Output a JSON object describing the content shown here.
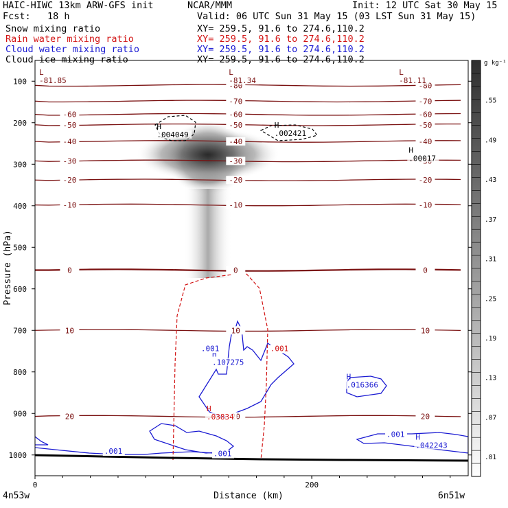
{
  "header": {
    "model": "HAIC-HIWC 13km ARW-GFS init",
    "org": "NCAR/MMM",
    "init": "Init: 12 UTC Sat 30 May 15",
    "fcst": "Fcst:   18 h",
    "valid": "Valid: 06 UTC Sun 31 May 15 (03 LST Sun 31 May 15)"
  },
  "fields": [
    {
      "name": "Snow mixing ratio",
      "xy": "XY= 259.5, 91.6 to 274.6,110.2",
      "color": "#000000"
    },
    {
      "name": "Rain water mixing ratio",
      "xy": "XY= 259.5, 91.6 to 274.6,110.2",
      "color": "#d21414"
    },
    {
      "name": "Cloud water mixing ratio",
      "xy": "XY= 259.5, 91.6 to 274.6,110.2",
      "color": "#1a1ad2"
    },
    {
      "name": "Cloud ice mixing ratio",
      "xy": "XY= 259.5, 91.6 to 274.6,110.2",
      "color": "#000000"
    }
  ],
  "chart_data": {
    "type": "heatmap",
    "xlabel": "Distance (km)",
    "ylabel": "Pressure (hPa)",
    "x_ticks": [
      0,
      200
    ],
    "y_ticks": [
      100,
      200,
      300,
      400,
      500,
      600,
      700,
      800,
      900,
      1000
    ],
    "xlim": [
      0,
      313
    ],
    "ylim": [
      1050,
      50
    ],
    "corner_left": "4n53w",
    "corner_right": "6n51w",
    "colorbar": {
      "unit": "g kg⁻¹",
      "labels": [
        ".01",
        ".07",
        ".13",
        ".19",
        ".25",
        ".31",
        ".37",
        ".43",
        ".49",
        ".55"
      ]
    },
    "temperature_contour_labels": [
      "-80",
      "-70",
      "-60",
      "-50",
      "-40",
      "-30",
      "-20",
      "-10",
      "0",
      "10",
      "20"
    ],
    "isotherms": [
      {
        "t": -80,
        "p": 110
      },
      {
        "t": -70,
        "p": 148
      },
      {
        "t": -60,
        "p": 180
      },
      {
        "t": -50,
        "p": 205
      },
      {
        "t": -40,
        "p": 245
      },
      {
        "t": -30,
        "p": 292
      },
      {
        "t": -20,
        "p": 338
      },
      {
        "t": -10,
        "p": 398
      },
      {
        "t": 0,
        "p": 555
      },
      {
        "t": 10,
        "p": 700
      },
      {
        "t": 20,
        "p": 907
      }
    ],
    "extrema": [
      {
        "type": "L",
        "value": "-81.85",
        "x": 3,
        "p": 85
      },
      {
        "type": "L",
        "value": "-81.34",
        "x": 140,
        "p": 85
      },
      {
        "type": "L",
        "value": "-81.11",
        "x": 263,
        "p": 85
      },
      {
        "type": "H",
        "value": ".004049",
        "x": 88,
        "p": 215,
        "field": "snow"
      },
      {
        "type": "H",
        "value": ".002421",
        "x": 173,
        "p": 212,
        "field": "snow"
      },
      {
        "type": "H",
        "value": ".00017",
        "x": 270,
        "p": 272,
        "field": "cloud_ice"
      },
      {
        "type": "H",
        "value": ".107275",
        "x": 128,
        "p": 763,
        "field": "cloud_water"
      },
      {
        "type": "H",
        "value": ".016366",
        "x": 225,
        "p": 818,
        "field": "cloud_water"
      },
      {
        "type": "H",
        "value": ".042243",
        "x": 275,
        "p": 963,
        "field": "cloud_water"
      },
      {
        "type": "H",
        "value": ".03834",
        "x": 124,
        "p": 895,
        "field": "rain"
      }
    ],
    "contour_labels": [
      {
        "value": ".001",
        "x": 120,
        "p": 750,
        "field": "cloud_water"
      },
      {
        "value": ".001",
        "x": 50,
        "p": 997,
        "field": "cloud_water"
      },
      {
        "value": ".001",
        "x": 129,
        "p": 1003,
        "field": "cloud_water"
      },
      {
        "value": ".001",
        "x": 254,
        "p": 957,
        "field": "cloud_water"
      },
      {
        "value": ".001",
        "x": 170,
        "p": 750,
        "field": "rain"
      }
    ],
    "shading_max": {
      "x": 134,
      "p": 290,
      "value": 0.6
    }
  }
}
